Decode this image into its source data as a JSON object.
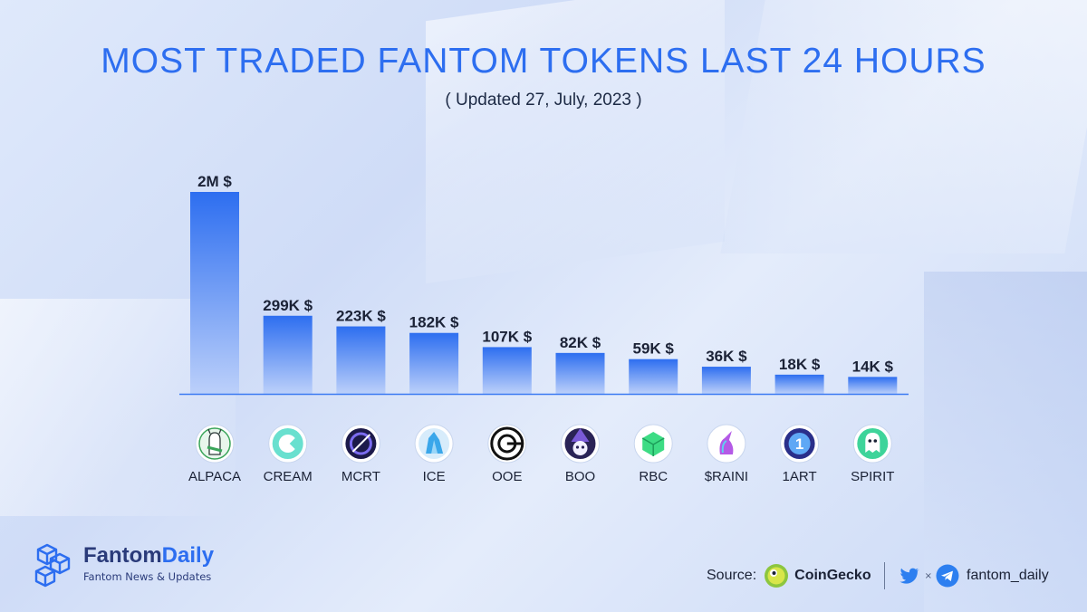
{
  "header": {
    "title": "MOST TRADED FANTOM TOKENS LAST 24 HOURS",
    "subtitle": "( Updated 27, July, 2023 )"
  },
  "chart_data": {
    "type": "bar",
    "title": "MOST TRADED FANTOM TOKENS LAST 24 HOURS",
    "subtitle": "( Updated 27, July, 2023 )",
    "categories": [
      "ALPACA",
      "CREAM",
      "MCRT",
      "ICE",
      "OOE",
      "BOO",
      "RBC",
      "$RAINI",
      "1ART",
      "SPIRIT"
    ],
    "values": [
      2000000,
      299000,
      223000,
      182000,
      107000,
      82000,
      59000,
      36000,
      18000,
      14000
    ],
    "value_labels": [
      "2M $",
      "299K $",
      "223K $",
      "182K $",
      "107K $",
      "82K $",
      "59K $",
      "36K $",
      "18K $",
      "14K $"
    ],
    "icons": [
      "alpaca-icon",
      "cream-icon",
      "mcrt-icon",
      "ice-icon",
      "ooe-icon",
      "boo-icon",
      "rbc-icon",
      "raini-icon",
      "1art-icon",
      "spirit-icon"
    ],
    "bar_color": "#2d6ef0",
    "grid": false,
    "legend": "none"
  },
  "footer": {
    "brand_name_part1": "Fantom",
    "brand_name_part2": "Daily",
    "brand_tagline": "Fantom News & Updates",
    "source_label": "Source:",
    "source_name": "CoinGecko",
    "x_mark": "×",
    "handle": "fantom_daily"
  },
  "colors": {
    "accent": "#2d6ef0",
    "text_dark": "#1b2236",
    "brand_dark": "#2a3b7a"
  }
}
